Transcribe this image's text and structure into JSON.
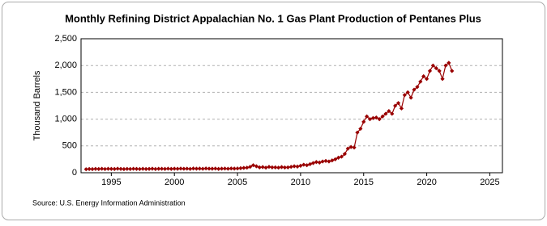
{
  "chart_data": {
    "type": "line",
    "title": "Monthly Refining District Appalachian No. 1 Gas Plant Production of Pentanes Plus",
    "y_label": "Thousand Barrels",
    "source": "Source: U.S. Energy Information Administration",
    "x": [
      1993,
      1993.25,
      1993.5,
      1993.75,
      1994,
      1994.25,
      1994.5,
      1994.75,
      1995,
      1995.25,
      1995.5,
      1995.75,
      1996,
      1996.25,
      1996.5,
      1996.75,
      1997,
      1997.25,
      1997.5,
      1997.75,
      1998,
      1998.25,
      1998.5,
      1998.75,
      1999,
      1999.25,
      1999.5,
      1999.75,
      2000,
      2000.25,
      2000.5,
      2000.75,
      2001,
      2001.25,
      2001.5,
      2001.75,
      2002,
      2002.25,
      2002.5,
      2002.75,
      2003,
      2003.25,
      2003.5,
      2003.75,
      2004,
      2004.25,
      2004.5,
      2004.75,
      2005,
      2005.25,
      2005.5,
      2005.75,
      2006,
      2006.25,
      2006.5,
      2006.75,
      2007,
      2007.25,
      2007.5,
      2007.75,
      2008,
      2008.25,
      2008.5,
      2008.75,
      2009,
      2009.25,
      2009.5,
      2009.75,
      2010,
      2010.25,
      2010.5,
      2010.75,
      2011,
      2011.25,
      2011.5,
      2011.75,
      2012,
      2012.25,
      2012.5,
      2012.75,
      2013,
      2013.25,
      2013.5,
      2013.75,
      2014,
      2014.25,
      2014.5,
      2014.75,
      2015,
      2015.25,
      2015.5,
      2015.75,
      2016,
      2016.25,
      2016.5,
      2016.75,
      2017,
      2017.25,
      2017.5,
      2017.75,
      2018,
      2018.25,
      2018.5,
      2018.75,
      2019,
      2019.25,
      2019.5,
      2019.75,
      2020,
      2020.25,
      2020.5,
      2020.75,
      2021,
      2021.25,
      2021.5,
      2021.75,
      2022
    ],
    "series": [
      {
        "name": "Pentanes Plus",
        "color": "#990000",
        "values": [
          65,
          70,
          68,
          72,
          70,
          74,
          69,
          73,
          72,
          70,
          75,
          71,
          68,
          72,
          70,
          74,
          71,
          69,
          73,
          70,
          72,
          75,
          70,
          73,
          74,
          71,
          76,
          72,
          75,
          73,
          78,
          74,
          76,
          72,
          79,
          75,
          77,
          74,
          80,
          76,
          75,
          78,
          72,
          76,
          78,
          74,
          80,
          77,
          80,
          85,
          90,
          95,
          110,
          140,
          120,
          100,
          105,
          95,
          110,
          100,
          100,
          95,
          105,
          98,
          100,
          110,
          120,
          115,
          130,
          150,
          140,
          160,
          180,
          200,
          190,
          210,
          220,
          210,
          230,
          250,
          280,
          300,
          350,
          450,
          480,
          470,
          750,
          820,
          950,
          1050,
          1000,
          1020,
          1030,
          1000,
          1050,
          1100,
          1150,
          1100,
          1250,
          1300,
          1200,
          1450,
          1500,
          1400,
          1550,
          1600,
          1700,
          1800,
          1750,
          1900,
          2000,
          1950,
          1900,
          1750,
          2000,
          2050,
          1900
        ]
      }
    ],
    "xlim": [
      1992.6,
      2026
    ],
    "xticks": [
      1995,
      2000,
      2005,
      2010,
      2015,
      2020,
      2025
    ],
    "ylim": [
      0,
      2500
    ],
    "yticks": [
      0,
      500,
      {
        "value": 1000,
        "label": "1,000"
      },
      {
        "value": 1500,
        "label": "1,500"
      },
      {
        "value": 2000,
        "label": "2,000"
      },
      {
        "value": 2500,
        "label": "2,500"
      }
    ],
    "grid": true
  }
}
